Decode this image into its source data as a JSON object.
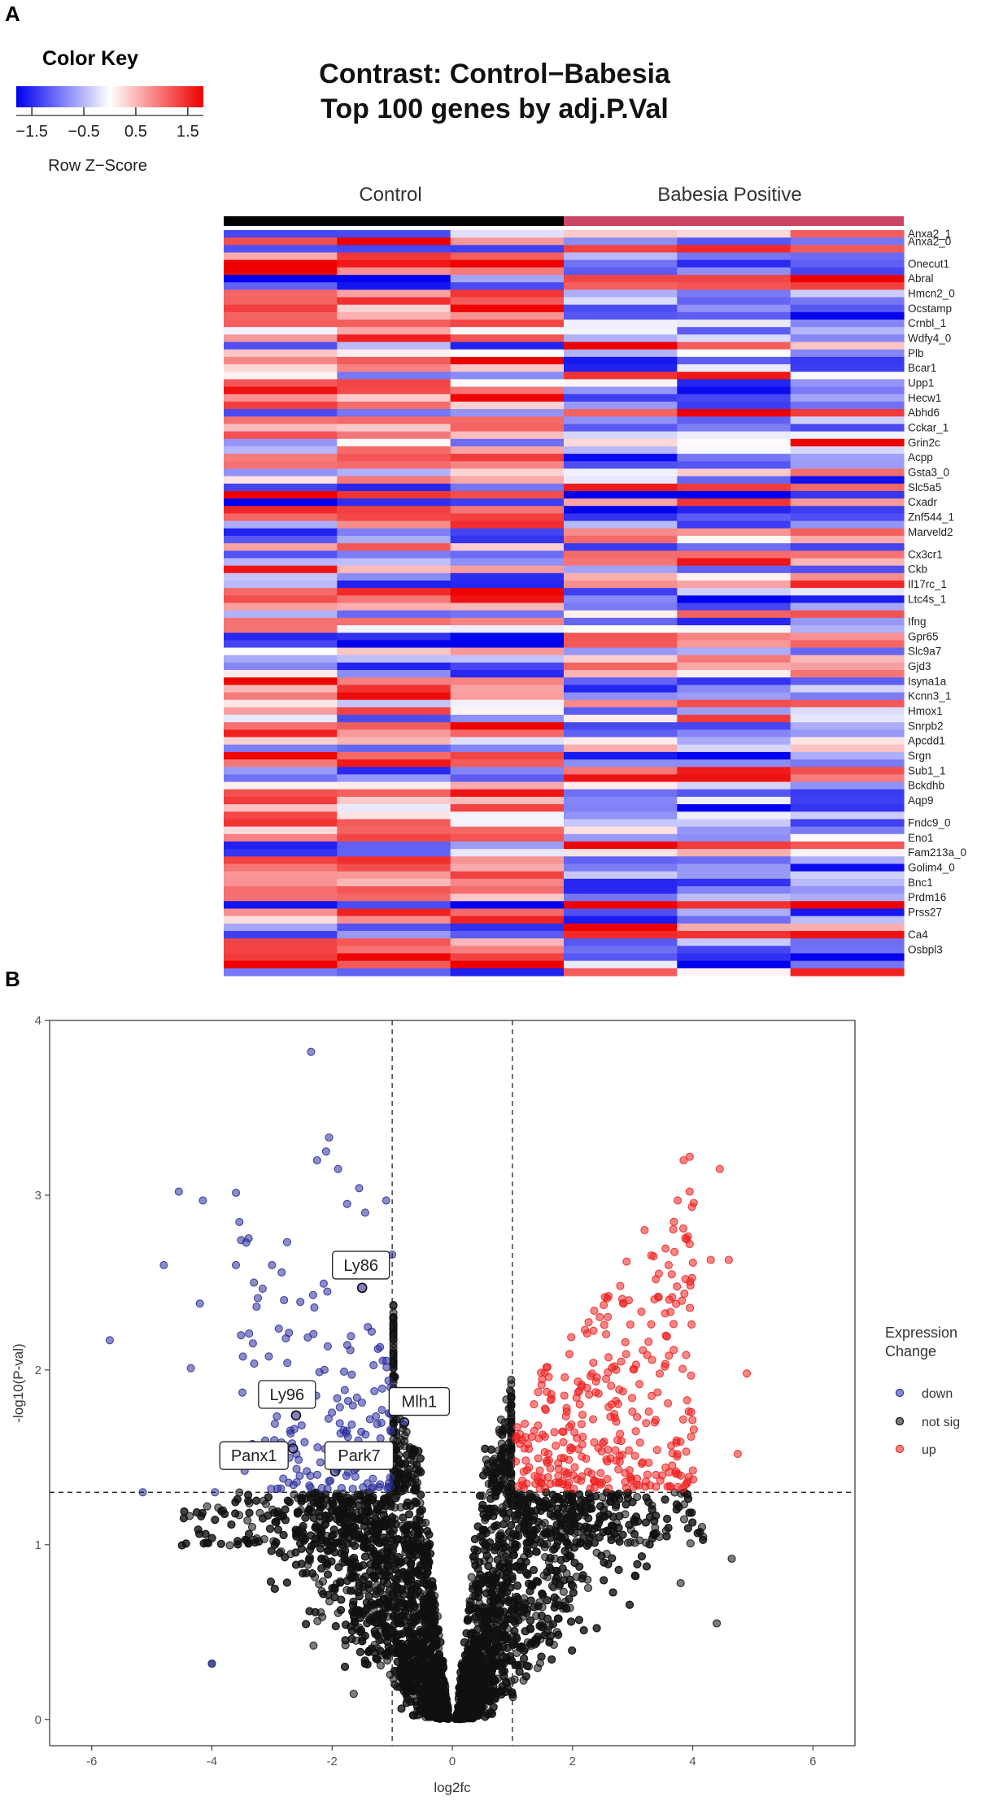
{
  "panels": {
    "a": "A",
    "b": "B"
  },
  "chart_data": [
    {
      "type": "heatmap",
      "title": "Contrast: Control−Babesia",
      "subtitle": "Top 100 genes by adj.P.Val",
      "color_key": {
        "title": "Color Key",
        "xlabel": "Row Z−Score",
        "ticks": [
          "−1.5",
          "−0.5",
          "0.5",
          "1.5"
        ],
        "tick_values": [
          -1.5,
          -0.5,
          0.5,
          1.5
        ],
        "range": [
          -1.8,
          1.8
        ],
        "colors": [
          "#0000ee",
          "#ffffff",
          "#ee0000"
        ]
      },
      "groups": [
        {
          "name": "Control",
          "color": "#000000",
          "columns": 3
        },
        {
          "name": "Babesia Positive",
          "color": "#cc4466",
          "columns": 3
        }
      ],
      "n_rows": 100,
      "row_labels": [
        {
          "row": 1,
          "name": "Anxa2_1"
        },
        {
          "row": 2,
          "name": "Anxa2_0"
        },
        {
          "row": 5,
          "name": "Onecut1"
        },
        {
          "row": 7,
          "name": "Abral"
        },
        {
          "row": 9,
          "name": "Hmcn2_0"
        },
        {
          "row": 11,
          "name": "Ocstamp"
        },
        {
          "row": 13,
          "name": "Crnbl_1"
        },
        {
          "row": 15,
          "name": "Wdfy4_0"
        },
        {
          "row": 17,
          "name": "Plb"
        },
        {
          "row": 19,
          "name": "Bcar1"
        },
        {
          "row": 21,
          "name": "Upp1"
        },
        {
          "row": 23,
          "name": "Hecw1"
        },
        {
          "row": 25,
          "name": "Abhd6"
        },
        {
          "row": 27,
          "name": "Cckar_1"
        },
        {
          "row": 29,
          "name": "Grin2c"
        },
        {
          "row": 31,
          "name": "Acpp"
        },
        {
          "row": 33,
          "name": "Gsta3_0"
        },
        {
          "row": 35,
          "name": "Slc5a5"
        },
        {
          "row": 37,
          "name": "Cxadr"
        },
        {
          "row": 39,
          "name": "Znf544_1"
        },
        {
          "row": 41,
          "name": "Marveld2"
        },
        {
          "row": 44,
          "name": "Cx3cr1"
        },
        {
          "row": 46,
          "name": "Ckb"
        },
        {
          "row": 48,
          "name": "Il17rc_1"
        },
        {
          "row": 50,
          "name": "Ltc4s_1"
        },
        {
          "row": 53,
          "name": "Ifng"
        },
        {
          "row": 55,
          "name": "Gpr65"
        },
        {
          "row": 57,
          "name": "Slc9a7"
        },
        {
          "row": 59,
          "name": "Gjd3"
        },
        {
          "row": 61,
          "name": "Isyna1a"
        },
        {
          "row": 63,
          "name": "Kcnn3_1"
        },
        {
          "row": 65,
          "name": "Hmox1"
        },
        {
          "row": 67,
          "name": "Snrpb2"
        },
        {
          "row": 69,
          "name": "Apcdd1"
        },
        {
          "row": 71,
          "name": "Srgn"
        },
        {
          "row": 73,
          "name": "Sub1_1"
        },
        {
          "row": 75,
          "name": "Bckdhb"
        },
        {
          "row": 77,
          "name": "Aqp9"
        },
        {
          "row": 80,
          "name": "Fndc9_0"
        },
        {
          "row": 82,
          "name": "Eno1"
        },
        {
          "row": 84,
          "name": "Fam213a_0"
        },
        {
          "row": 86,
          "name": "Golim4_0"
        },
        {
          "row": 88,
          "name": "Bnc1"
        },
        {
          "row": 90,
          "name": "Prdm16"
        },
        {
          "row": 92,
          "name": "Prss27"
        },
        {
          "row": 95,
          "name": "Ca4"
        },
        {
          "row": 97,
          "name": "Osbpl3"
        }
      ],
      "pattern": "approximate: Control columns mostly positive (red) with some negative rows; Babesia Positive columns mirror with opposite sign"
    },
    {
      "type": "scatter",
      "title": "",
      "xlabel": "log2fc",
      "ylabel": "-log10(P-val)",
      "xlim": [
        -6.7,
        6.7
      ],
      "ylim": [
        -0.15,
        4.0
      ],
      "xticks": [
        -6,
        -4,
        -2,
        0,
        2,
        4,
        6
      ],
      "yticks": [
        0,
        1,
        2,
        3,
        4
      ],
      "thresholds": {
        "log2fc": [
          -1,
          1
        ],
        "neglog10p": 1.3
      },
      "legend": {
        "title_line1": "Expression",
        "title_line2": "Change",
        "position": "right",
        "entries": [
          {
            "label": "down",
            "color": "#2b2f9b"
          },
          {
            "label": "not sig",
            "color": "#111111"
          },
          {
            "label": "up",
            "color": "#ee2222"
          }
        ]
      },
      "annotations": [
        {
          "label": "Ly86",
          "x": -1.5,
          "y": 2.47
        },
        {
          "label": "Ly96",
          "x": -2.6,
          "y": 1.74
        },
        {
          "label": "Mlh1",
          "x": -0.8,
          "y": 1.7
        },
        {
          "label": "Panx1",
          "x": -2.65,
          "y": 1.55
        },
        {
          "label": "Park7",
          "x": -1.95,
          "y": 1.42
        }
      ],
      "series": [
        {
          "name": "down",
          "n_points": 180,
          "points": [
            [
              -5.7,
              2.17
            ],
            [
              -5.15,
              1.3
            ],
            [
              -4.55,
              3.02
            ],
            [
              -4.35,
              2.01
            ],
            [
              -4.15,
              2.97
            ],
            [
              -4.0,
              0.32
            ],
            [
              -3.95,
              1.3
            ],
            [
              -4.8,
              2.6
            ],
            [
              -4.2,
              2.38
            ],
            [
              -2.35,
              3.82
            ],
            [
              -2.05,
              3.33
            ],
            [
              -2.1,
              3.25
            ],
            [
              -2.25,
              3.2
            ],
            [
              -1.9,
              3.15
            ],
            [
              -1.55,
              3.04
            ],
            [
              -1.45,
              2.9
            ],
            [
              -1.75,
              2.95
            ],
            [
              -1.1,
              2.97
            ],
            [
              -1.0,
              2.66
            ],
            [
              -3.6,
              2.6
            ],
            [
              -3.3,
              2.5
            ],
            [
              -3.0,
              2.6
            ]
          ]
        },
        {
          "name": "up",
          "n_points": 330,
          "points": [
            [
              3.95,
              3.22
            ],
            [
              3.85,
              3.2
            ],
            [
              4.45,
              3.15
            ],
            [
              3.75,
              2.97
            ],
            [
              3.95,
              3.02
            ],
            [
              3.2,
              2.8
            ],
            [
              3.35,
              2.65
            ],
            [
              4.3,
              2.63
            ],
            [
              4.6,
              2.63
            ],
            [
              3.6,
              2.6
            ],
            [
              3.95,
              2.72
            ],
            [
              2.85,
              2.38
            ],
            [
              2.9,
              2.62
            ],
            [
              4.75,
              1.52
            ],
            [
              4.9,
              1.98
            ]
          ]
        },
        {
          "name": "not sig",
          "n_points": 5200,
          "points": [
            [
              4.65,
              0.92
            ],
            [
              4.4,
              0.55
            ],
            [
              -4.0,
              0.32
            ],
            [
              3.8,
              0.78
            ],
            [
              3.05,
              0.82
            ]
          ]
        }
      ]
    }
  ]
}
